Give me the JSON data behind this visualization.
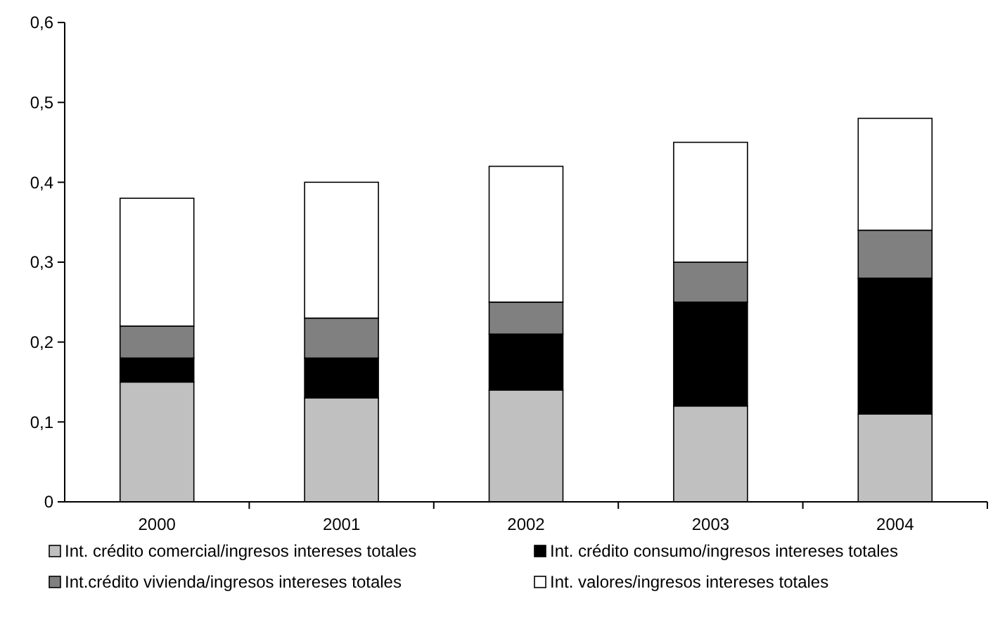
{
  "chart_data": {
    "type": "bar",
    "stacked": true,
    "categories": [
      "2000",
      "2001",
      "2002",
      "2003",
      "2004"
    ],
    "series": [
      {
        "name": "Int. crédito comercial/ingresos intereses totales",
        "color": "#c0c0c0",
        "values": [
          0.15,
          0.13,
          0.14,
          0.12,
          0.11
        ]
      },
      {
        "name": "Int. crédito consumo/ingresos intereses totales",
        "color": "#000000",
        "values": [
          0.03,
          0.05,
          0.07,
          0.13,
          0.17
        ]
      },
      {
        "name": "Int.crédito vivienda/ingresos intereses totales",
        "color": "#808080",
        "values": [
          0.04,
          0.05,
          0.04,
          0.05,
          0.06
        ]
      },
      {
        "name": "Int. valores/ingresos intereses totales",
        "color": "#ffffff",
        "values": [
          0.16,
          0.17,
          0.17,
          0.15,
          0.14
        ]
      }
    ],
    "ylim": [
      0,
      0.6
    ],
    "yticks": [
      {
        "value": 0,
        "label": "0"
      },
      {
        "value": 0.1,
        "label": "0,1"
      },
      {
        "value": 0.2,
        "label": "0,2"
      },
      {
        "value": 0.3,
        "label": "0,3"
      },
      {
        "value": 0.4,
        "label": "0,4"
      },
      {
        "value": 0.5,
        "label": "0,5"
      },
      {
        "value": 0.6,
        "label": "0,6"
      }
    ],
    "grid": false,
    "legend": "bottom"
  }
}
